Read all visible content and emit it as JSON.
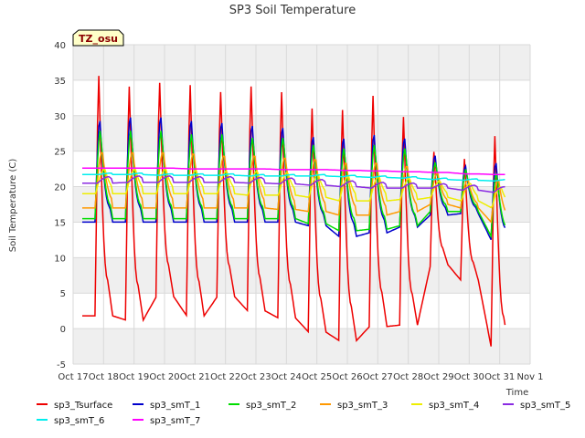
{
  "chart_data": {
    "type": "line",
    "title": "SP3 Soil Temperature",
    "xlabel": "Time",
    "ylabel": "Soil Temperature (C)",
    "badge": "TZ_osu",
    "ylim": [
      -5,
      40
    ],
    "xlim": [
      17,
      32
    ],
    "yticks": [
      -5,
      0,
      5,
      10,
      15,
      20,
      25,
      30,
      35,
      40
    ],
    "xticks": [
      {
        "value": 17,
        "label": "Oct 17"
      },
      {
        "value": 18,
        "label": "Oct 18"
      },
      {
        "value": 19,
        "label": "Oct 19"
      },
      {
        "value": 20,
        "label": "Oct 20"
      },
      {
        "value": 21,
        "label": "Oct 21"
      },
      {
        "value": 22,
        "label": "Oct 22"
      },
      {
        "value": 23,
        "label": "Oct 23"
      },
      {
        "value": 24,
        "label": "Oct 24"
      },
      {
        "value": 25,
        "label": "Oct 25"
      },
      {
        "value": 26,
        "label": "Oct 26"
      },
      {
        "value": 27,
        "label": "Oct 27"
      },
      {
        "value": 28,
        "label": "Oct 28"
      },
      {
        "value": 29,
        "label": "Oct 29"
      },
      {
        "value": 30,
        "label": "Oct 30"
      },
      {
        "value": 31,
        "label": "Oct 31"
      },
      {
        "value": 32,
        "label": "Nov 1"
      }
    ],
    "series": [
      {
        "name": "sp3_Tsurface",
        "color": "#ee0000",
        "min": [
          1.8,
          1.2,
          4.5,
          1.8,
          4.5,
          2.5,
          1.5,
          -0.5,
          -1.7,
          0.3,
          0.5,
          9.0,
          6.8,
          -2.8,
          -0.5
        ],
        "max": [
          35.8,
          34.3,
          34.8,
          34.5,
          33.5,
          34.3,
          33.5,
          31.2,
          31.0,
          33.0,
          30.0,
          25.0,
          24.0,
          27.3,
          27.3
        ]
      },
      {
        "name": "sp3_smT_1",
        "color": "#0000cc",
        "min": [
          15.0,
          15.0,
          15.0,
          15.0,
          15.0,
          15.0,
          15.0,
          14.5,
          13.0,
          13.5,
          14.3,
          16.0,
          16.2,
          12.5,
          14.0
        ],
        "max": [
          29.5,
          30.0,
          30.0,
          29.5,
          29.2,
          28.8,
          28.5,
          27.2,
          27.0,
          27.5,
          27.0,
          24.5,
          23.0,
          23.5,
          23.5
        ]
      },
      {
        "name": "sp3_smT_2",
        "color": "#00dd00",
        "min": [
          15.5,
          15.5,
          15.5,
          15.5,
          15.5,
          15.5,
          15.5,
          14.8,
          13.8,
          14.0,
          14.5,
          16.5,
          16.5,
          13.0,
          14.5
        ],
        "max": [
          28.0,
          28.0,
          28.0,
          27.5,
          27.5,
          27.0,
          27.0,
          26.0,
          25.5,
          26.0,
          25.5,
          23.5,
          22.5,
          22.0,
          22.0
        ]
      },
      {
        "name": "sp3_smT_3",
        "color": "#ff9900",
        "min": [
          17.0,
          17.0,
          17.0,
          17.0,
          17.0,
          17.0,
          16.8,
          16.5,
          16.0,
          16.0,
          16.5,
          17.5,
          17.0,
          15.0,
          16.5
        ],
        "max": [
          25.0,
          25.0,
          25.0,
          24.8,
          24.5,
          24.5,
          24.2,
          24.0,
          23.5,
          23.5,
          23.0,
          22.0,
          21.0,
          21.0,
          21.0
        ]
      },
      {
        "name": "sp3_smT_4",
        "color": "#eeee00",
        "min": [
          19.0,
          19.0,
          19.0,
          19.0,
          19.0,
          18.8,
          18.8,
          18.5,
          18.0,
          18.0,
          18.2,
          18.5,
          18.0,
          17.0,
          17.5
        ],
        "max": [
          22.5,
          22.5,
          22.5,
          22.3,
          22.2,
          22.2,
          22.0,
          21.8,
          21.5,
          21.5,
          21.2,
          20.8,
          20.5,
          20.0,
          20.0
        ]
      },
      {
        "name": "sp3_smT_5",
        "color": "#8a2be2",
        "min": [
          20.5,
          20.6,
          20.6,
          20.6,
          20.6,
          20.5,
          20.4,
          20.2,
          20.0,
          19.8,
          19.8,
          19.8,
          19.5,
          19.2,
          19.0
        ],
        "max": [
          21.4,
          21.5,
          21.5,
          21.4,
          21.4,
          21.3,
          21.2,
          21.0,
          20.8,
          20.6,
          20.5,
          20.4,
          20.2,
          20.0,
          19.8
        ]
      },
      {
        "name": "sp3_smT_6",
        "color": "#00eeee",
        "min": [
          21.7,
          21.7,
          21.6,
          21.6,
          21.6,
          21.5,
          21.5,
          21.5,
          21.4,
          21.3,
          21.2,
          21.0,
          20.9,
          20.8,
          20.6
        ],
        "max": [
          21.9,
          21.9,
          21.8,
          21.8,
          21.8,
          21.7,
          21.7,
          21.7,
          21.6,
          21.5,
          21.4,
          21.2,
          21.1,
          21.0,
          20.8
        ]
      },
      {
        "name": "sp3_smT_7",
        "color": "#ff00ff",
        "min": [
          22.6,
          22.6,
          22.6,
          22.5,
          22.5,
          22.5,
          22.4,
          22.4,
          22.3,
          22.2,
          22.1,
          22.0,
          21.8,
          21.7,
          21.5
        ],
        "max": [
          22.6,
          22.6,
          22.6,
          22.5,
          22.5,
          22.5,
          22.4,
          22.4,
          22.3,
          22.2,
          22.1,
          22.0,
          21.8,
          21.7,
          21.5
        ]
      }
    ],
    "legend": [
      {
        "name": "sp3_Tsurface",
        "color": "#ee0000"
      },
      {
        "name": "sp3_smT_1",
        "color": "#0000cc"
      },
      {
        "name": "sp3_smT_2",
        "color": "#00dd00"
      },
      {
        "name": "sp3_smT_3",
        "color": "#ff9900"
      },
      {
        "name": "sp3_smT_4",
        "color": "#eeee00"
      },
      {
        "name": "sp3_smT_5",
        "color": "#8a2be2"
      },
      {
        "name": "sp3_smT_6",
        "color": "#00eeee"
      },
      {
        "name": "sp3_smT_7",
        "color": "#ff00ff"
      }
    ]
  }
}
